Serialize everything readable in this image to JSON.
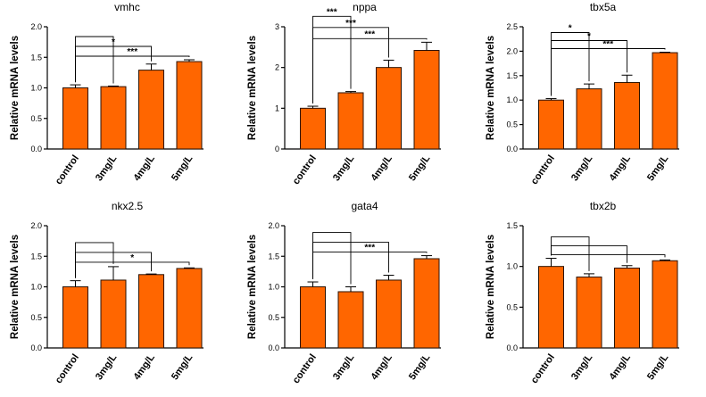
{
  "figure": {
    "panel_count": 6
  },
  "chart_data": [
    {
      "type": "bar",
      "title": "vmhc",
      "ylabel": "Relative mRNA levels",
      "categories": [
        "control",
        "3mg/L",
        "4mg/L",
        "5mg/L"
      ],
      "values": [
        1.0,
        1.02,
        1.29,
        1.43
      ],
      "errors": [
        0.05,
        0.01,
        0.1,
        0.03
      ],
      "ylim": [
        0,
        2.0
      ],
      "yticks": [
        "0.0",
        "0.5",
        "1.0",
        "1.5",
        "2.0"
      ],
      "bar_color": "#ff6600",
      "comparisons": [
        {
          "to": 1,
          "label": ""
        },
        {
          "to": 2,
          "label": "*"
        },
        {
          "to": 3,
          "label": "***"
        }
      ]
    },
    {
      "type": "bar",
      "title": "nppa",
      "ylabel": "Relative mRNA levels",
      "categories": [
        "control",
        "3mg/L",
        "4mg/L",
        "5mg/L"
      ],
      "values": [
        1.0,
        1.38,
        2.0,
        2.42
      ],
      "errors": [
        0.05,
        0.03,
        0.18,
        0.2
      ],
      "ylim": [
        0,
        3.0
      ],
      "yticks": [
        "0",
        "1",
        "2",
        "3"
      ],
      "bar_color": "#ff6600",
      "comparisons": [
        {
          "to": 1,
          "label": "***"
        },
        {
          "to": 2,
          "label": "***"
        },
        {
          "to": 3,
          "label": "***"
        }
      ]
    },
    {
      "type": "bar",
      "title": "tbx5a",
      "ylabel": "Relative mRNA levels",
      "categories": [
        "control",
        "3mg/L",
        "4mg/L",
        "5mg/L"
      ],
      "values": [
        1.0,
        1.23,
        1.36,
        1.97
      ],
      "errors": [
        0.03,
        0.1,
        0.15,
        0.01
      ],
      "ylim": [
        0,
        2.5
      ],
      "yticks": [
        "0.0",
        "0.5",
        "1.0",
        "1.5",
        "2.0",
        "2.5"
      ],
      "bar_color": "#ff6600",
      "comparisons": [
        {
          "to": 1,
          "label": "*"
        },
        {
          "to": 2,
          "label": "*"
        },
        {
          "to": 3,
          "label": "***"
        }
      ]
    },
    {
      "type": "bar",
      "title": "nkx2.5",
      "ylabel": "Relative mRNA levels",
      "categories": [
        "control",
        "3mg/L",
        "4mg/L",
        "5mg/L"
      ],
      "values": [
        1.0,
        1.11,
        1.2,
        1.3
      ],
      "errors": [
        0.1,
        0.22,
        0.01,
        0.01
      ],
      "ylim": [
        0,
        2.0
      ],
      "yticks": [
        "0.0",
        "0.5",
        "1.0",
        "1.5",
        "2.0"
      ],
      "bar_color": "#ff6600",
      "comparisons": [
        {
          "to": 1,
          "label": ""
        },
        {
          "to": 2,
          "label": ""
        },
        {
          "to": 3,
          "label": "*"
        }
      ]
    },
    {
      "type": "bar",
      "title": "gata4",
      "ylabel": "Relative mRNA levels",
      "categories": [
        "control",
        "3mg/L",
        "4mg/L",
        "5mg/L"
      ],
      "values": [
        1.0,
        0.92,
        1.11,
        1.46
      ],
      "errors": [
        0.08,
        0.08,
        0.08,
        0.05
      ],
      "ylim": [
        0,
        2.0
      ],
      "yticks": [
        "0.0",
        "0.5",
        "1.0",
        "1.5",
        "2.0"
      ],
      "bar_color": "#ff6600",
      "comparisons": [
        {
          "to": 1,
          "label": ""
        },
        {
          "to": 2,
          "label": ""
        },
        {
          "to": 3,
          "label": "***"
        }
      ]
    },
    {
      "type": "bar",
      "title": "tbx2b",
      "ylabel": "Relative mRNA levels",
      "categories": [
        "control",
        "3mg/L",
        "4mg/L",
        "5mg/L"
      ],
      "values": [
        1.0,
        0.87,
        0.98,
        1.07
      ],
      "errors": [
        0.1,
        0.04,
        0.03,
        0.01
      ],
      "ylim": [
        0,
        1.5
      ],
      "yticks": [
        "0.0",
        "0.5",
        "1.0",
        "1.5"
      ],
      "bar_color": "#ff6600",
      "comparisons": [
        {
          "to": 1,
          "label": ""
        },
        {
          "to": 2,
          "label": ""
        },
        {
          "to": 3,
          "label": ""
        }
      ]
    }
  ]
}
